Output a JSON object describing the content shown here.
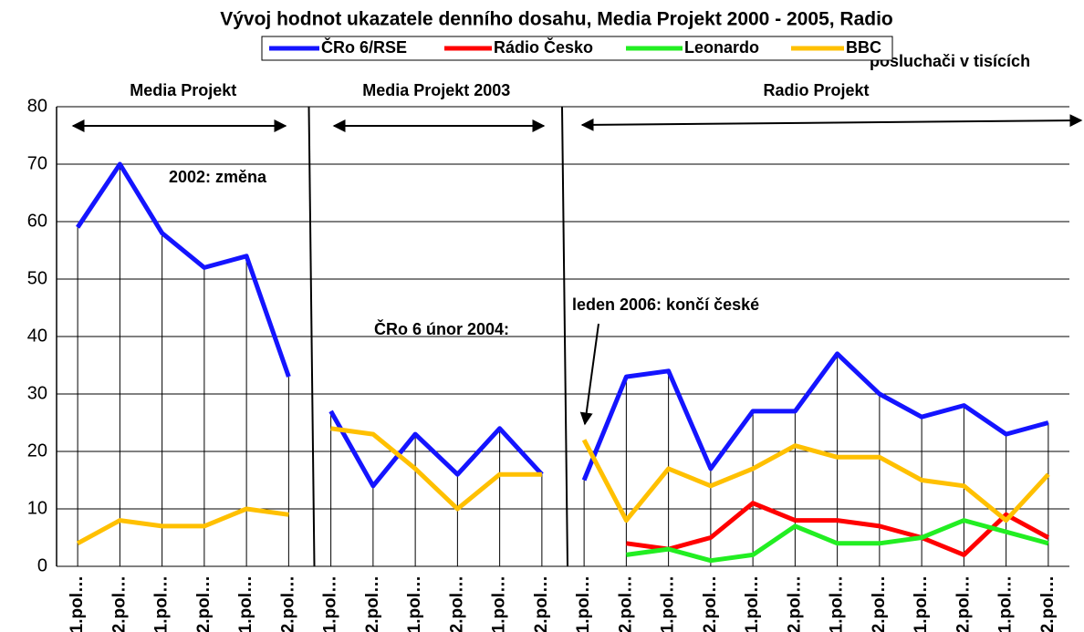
{
  "chart_data": {
    "type": "line",
    "title": "Vývoj hodnot ukazatele denního dosahu, Media Projekt 2000 - 2005, Radio",
    "unit_label": "posluchači v tisících",
    "groups": [
      {
        "label": "Media Projekt",
        "categories": [
          "1.pol…",
          "2.pol…",
          "1.pol…",
          "2.pol…",
          "1.pol…",
          "2.pol…"
        ]
      },
      {
        "label": "Media Projekt 2003",
        "categories": [
          "1.pol…",
          "2.pol…",
          "1.pol…",
          "2.pol…",
          "1.pol…",
          "2.pol…"
        ]
      },
      {
        "label": "Radio Projekt",
        "categories": [
          "1.pol…",
          "2.pol…",
          "1.pol…",
          "2.pol…",
          "1.pol…",
          "2.pol…",
          "1.pol…",
          "2.pol…",
          "1.pol…",
          "2.pol…",
          "1.pol…",
          "2.pol…"
        ]
      }
    ],
    "series": [
      {
        "name": "ČRo 6/RSE",
        "color": "#1414ff",
        "values": [
          [
            59,
            70,
            58,
            52,
            54,
            33
          ],
          [
            27,
            14,
            23,
            16,
            24,
            16
          ],
          [
            15,
            33,
            34,
            17,
            27,
            27,
            37,
            30,
            26,
            28,
            23,
            25
          ]
        ]
      },
      {
        "name": "Rádio Česko",
        "color": "#ff0000",
        "values": [
          [
            null,
            null,
            null,
            null,
            null,
            null
          ],
          [
            null,
            null,
            null,
            null,
            null,
            null
          ],
          [
            null,
            4,
            3,
            5,
            11,
            8,
            8,
            7,
            5,
            2,
            9,
            5
          ]
        ]
      },
      {
        "name": "Leonardo",
        "color": "#22ee22",
        "values": [
          [
            null,
            null,
            null,
            null,
            null,
            null
          ],
          [
            null,
            null,
            null,
            null,
            null,
            null
          ],
          [
            null,
            2,
            3,
            1,
            2,
            7,
            4,
            4,
            5,
            8,
            6,
            4
          ]
        ]
      },
      {
        "name": "BBC",
        "color": "#ffc000",
        "values": [
          [
            4,
            8,
            7,
            7,
            10,
            9
          ],
          [
            24,
            23,
            17,
            10,
            16,
            16
          ],
          [
            22,
            8,
            17,
            14,
            17,
            21,
            19,
            19,
            15,
            14,
            8,
            16
          ]
        ]
      }
    ],
    "annotations": [
      "2002: změna",
      "ČRo 6 únor 2004:",
      "leden 2006: končí české"
    ],
    "ylim": [
      0,
      80
    ],
    "yticks": [
      0,
      10,
      20,
      30,
      40,
      50,
      60,
      70,
      80
    ],
    "grid": true
  }
}
